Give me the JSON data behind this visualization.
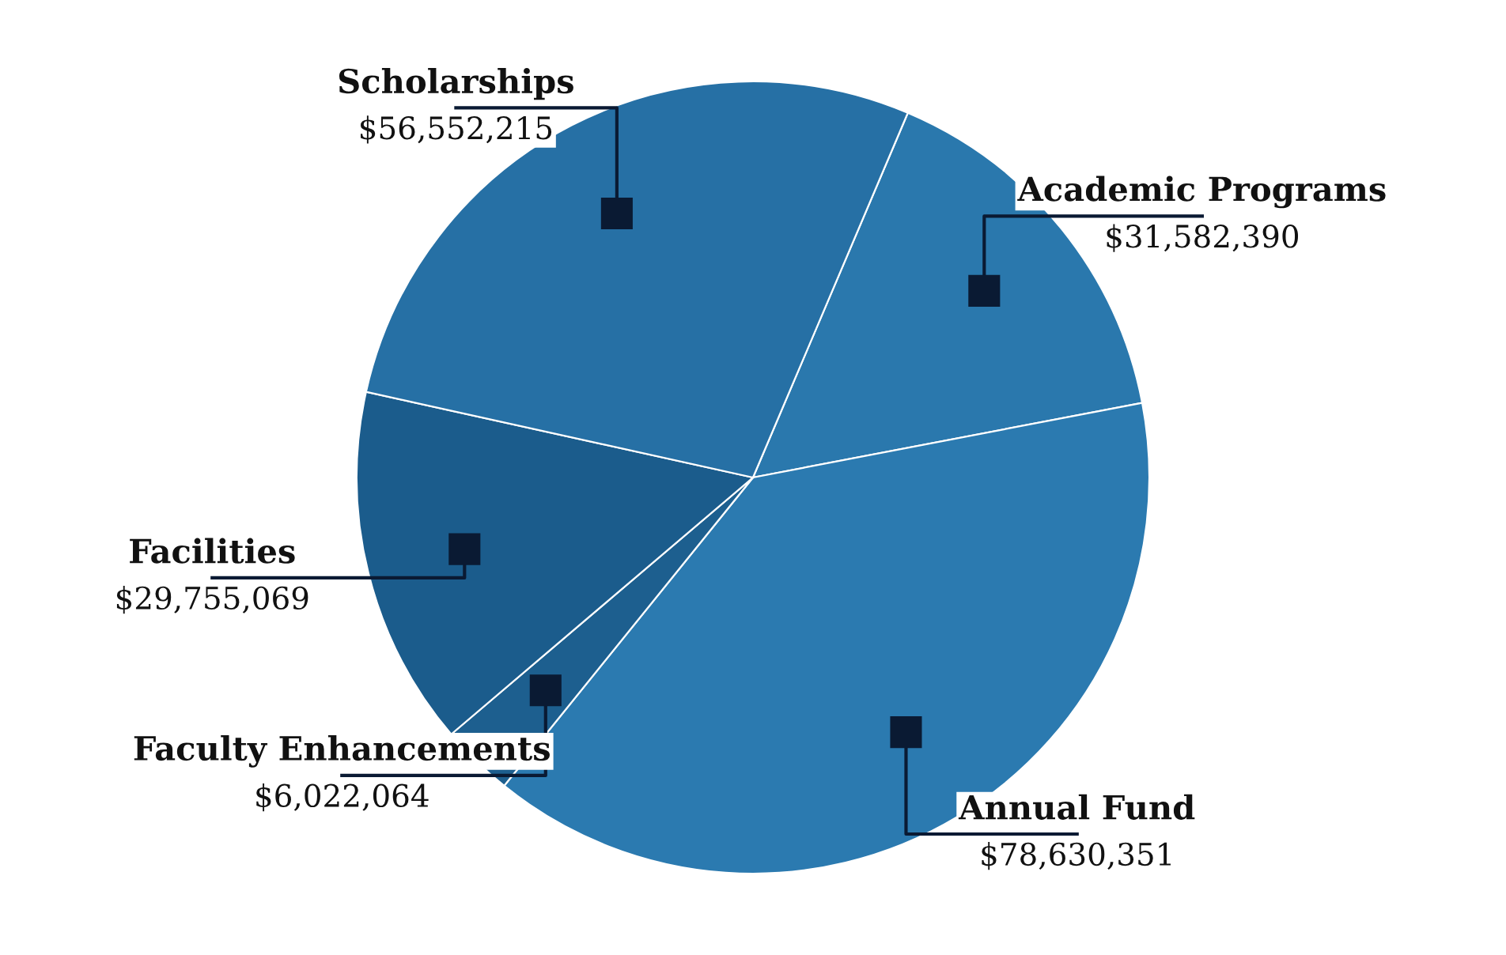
{
  "chart_data": {
    "type": "pie",
    "categories": [
      "Academic Programs",
      "Annual Fund",
      "Faculty Enhancements",
      "Facilities",
      "Scholarships"
    ],
    "values": [
      31582390,
      78630351,
      6022064,
      29755069,
      56552215
    ],
    "value_labels": [
      "$31,582,390",
      "$78,630,351",
      "$6,022,064",
      "$29,755,069",
      "$56,552,215"
    ],
    "colors": [
      "#2a78ad",
      "#2b7ab0",
      "#1d5f8f",
      "#1b5c8c",
      "#2670a5"
    ],
    "legend": false
  }
}
